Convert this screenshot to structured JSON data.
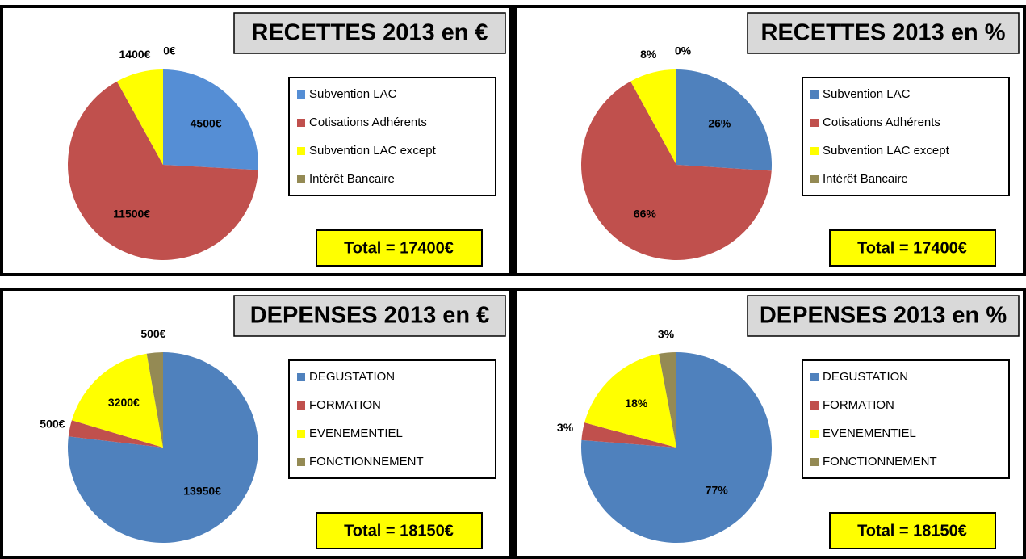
{
  "chart_data": [
    {
      "type": "pie",
      "title": "RECETTES 2013 en €",
      "categories": [
        "Subvention LAC",
        "Cotisations Adhérents",
        "Subvention LAC except",
        "Intérêt Bancaire"
      ],
      "values": [
        4500,
        11500,
        1400,
        0
      ],
      "value_labels": [
        "4500€",
        "11500€",
        "1400€",
        "0€"
      ],
      "colors": [
        "#558ed5",
        "#c0504d",
        "#ffff00",
        "#948a54"
      ],
      "annotation": "Total = 17400€"
    },
    {
      "type": "pie",
      "title": "RECETTES 2013 en %",
      "categories": [
        "Subvention LAC",
        "Cotisations Adhérents",
        "Subvention LAC except",
        "Intérêt Bancaire"
      ],
      "values": [
        26,
        66,
        8,
        0
      ],
      "value_labels": [
        "26%",
        "66%",
        "8%",
        "0%"
      ],
      "colors": [
        "#4f81bd",
        "#c0504d",
        "#ffff00",
        "#948a54"
      ],
      "annotation": "Total = 17400€"
    },
    {
      "type": "pie",
      "title": "DEPENSES 2013 en €",
      "categories": [
        "DEGUSTATION",
        "FORMATION",
        "EVENEMENTIEL",
        "FONCTIONNEMENT"
      ],
      "values": [
        13950,
        500,
        3200,
        500
      ],
      "value_labels": [
        "13950€",
        "500€",
        "3200€",
        "500€"
      ],
      "colors": [
        "#4f81bd",
        "#c0504d",
        "#ffff00",
        "#948a54"
      ],
      "annotation": "Total = 18150€"
    },
    {
      "type": "pie",
      "title": "DEPENSES 2013 en %",
      "categories": [
        "DEGUSTATION",
        "FORMATION",
        "EVENEMENTIEL",
        "FONCTIONNEMENT"
      ],
      "values": [
        77,
        3,
        18,
        3
      ],
      "value_labels": [
        "77%",
        "3%",
        "18%",
        "3%"
      ],
      "colors": [
        "#4f81bd",
        "#c0504d",
        "#ffff00",
        "#948a54"
      ],
      "annotation": "Total = 18150€"
    }
  ]
}
